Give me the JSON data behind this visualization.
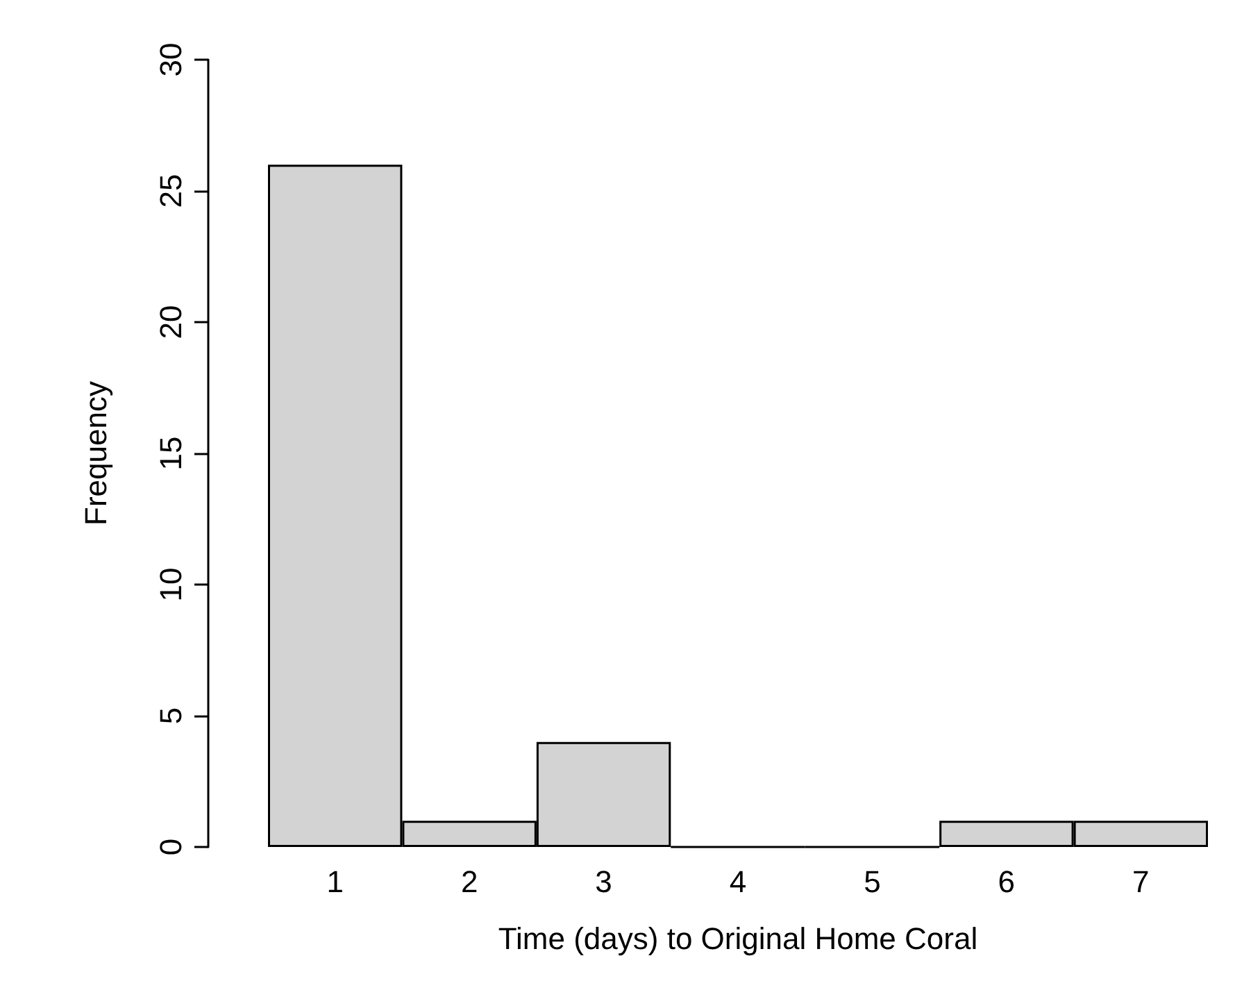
{
  "chart_data": {
    "type": "bar",
    "xlabel": "Time (days) to Original Home Coral",
    "ylabel": "Frequency",
    "categories": [
      "1",
      "2",
      "3",
      "4",
      "5",
      "6",
      "7"
    ],
    "values": [
      26,
      1,
      4,
      0,
      0,
      1,
      1
    ],
    "color": "#d3d3d3",
    "ylim": [
      0,
      30
    ],
    "yticks": [
      0,
      5,
      10,
      15,
      20,
      25,
      30
    ],
    "grid": false
  }
}
